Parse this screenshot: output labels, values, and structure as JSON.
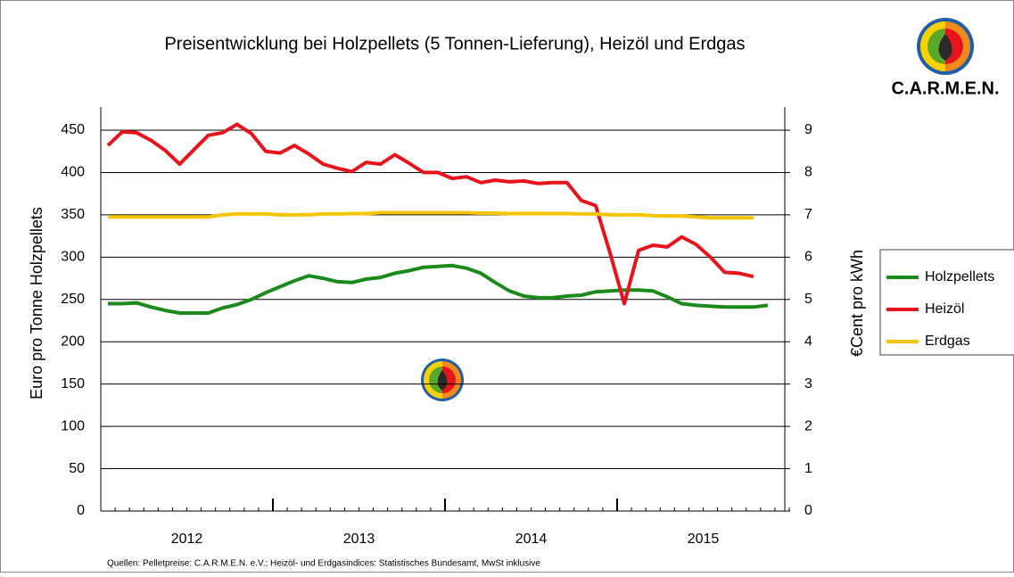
{
  "chart_data": {
    "type": "line",
    "title": "Preisentwicklung bei Holzpellets (5 Tonnen-Lieferung), Heizöl und Erdgas",
    "logo_text": "C.A.R.M.E.N.",
    "source": "Quellen:  Pelletpreise: C.A.R.M.E.N. e.V.; Heizöl- und Erdgasindices: Statistisches Bundesamt, MwSt inklusive",
    "ylabel": "Euro pro Tonne Holzpellets",
    "y2label": "€Cent pro kWh",
    "categories": [
      null,
      null,
      null,
      null,
      null,
      "2012",
      null,
      null,
      null,
      null,
      null,
      null,
      null,
      null,
      null,
      null,
      null,
      "2013",
      null,
      null,
      null,
      null,
      null,
      null,
      null,
      null,
      null,
      null,
      null,
      "2014",
      null,
      null,
      null,
      null,
      null,
      null,
      null,
      null,
      null,
      null,
      null,
      "2015",
      null,
      null,
      null,
      null,
      null,
      null
    ],
    "ylim": [
      0,
      450
    ],
    "yticks": [
      0,
      50,
      100,
      150,
      200,
      250,
      300,
      350,
      400,
      450
    ],
    "y2lim": [
      0,
      9
    ],
    "y2ticks": [
      0,
      1,
      2,
      3,
      4,
      5,
      6,
      7,
      8,
      9
    ],
    "grid": true,
    "legend": "right",
    "series": [
      {
        "name": "Holzpellets",
        "color": "#1a8a1a",
        "values": [
          245,
          245,
          246,
          241,
          237,
          234,
          234,
          234,
          240,
          244,
          250,
          258,
          265,
          272,
          278,
          275,
          271,
          270,
          274,
          276,
          281,
          284,
          288,
          289,
          290,
          287,
          281,
          270,
          260,
          254,
          252,
          252,
          254,
          255,
          259,
          260,
          261,
          261,
          260,
          253,
          245,
          243,
          242,
          241,
          241,
          241,
          243,
          null
        ]
      },
      {
        "name": "Heizöl",
        "color": "#e8141c",
        "values": [
          432,
          448,
          447,
          438,
          426,
          410,
          427,
          444,
          447,
          457,
          446,
          425,
          423,
          432,
          422,
          410,
          405,
          401,
          412,
          410,
          421,
          411,
          400,
          400,
          393,
          395,
          388,
          391,
          389,
          390,
          387,
          388,
          388,
          367,
          361,
          305,
          245,
          308,
          314,
          312,
          324,
          315,
          300,
          282,
          281,
          277,
          null,
          null
        ]
      },
      {
        "name": "Erdgas",
        "color": "#f5c400",
        "axis": "y2",
        "values": [
          6.95,
          6.95,
          6.95,
          6.95,
          6.95,
          6.95,
          6.95,
          6.95,
          7.0,
          7.02,
          7.02,
          7.02,
          7.0,
          7.0,
          7.0,
          7.02,
          7.02,
          7.03,
          7.03,
          7.05,
          7.05,
          7.05,
          7.05,
          7.05,
          7.05,
          7.05,
          7.04,
          7.04,
          7.03,
          7.03,
          7.03,
          7.03,
          7.03,
          7.02,
          7.02,
          7.0,
          7.0,
          7.0,
          6.98,
          6.97,
          6.97,
          6.95,
          6.93,
          6.93,
          6.93,
          6.93,
          null,
          null
        ]
      }
    ]
  }
}
